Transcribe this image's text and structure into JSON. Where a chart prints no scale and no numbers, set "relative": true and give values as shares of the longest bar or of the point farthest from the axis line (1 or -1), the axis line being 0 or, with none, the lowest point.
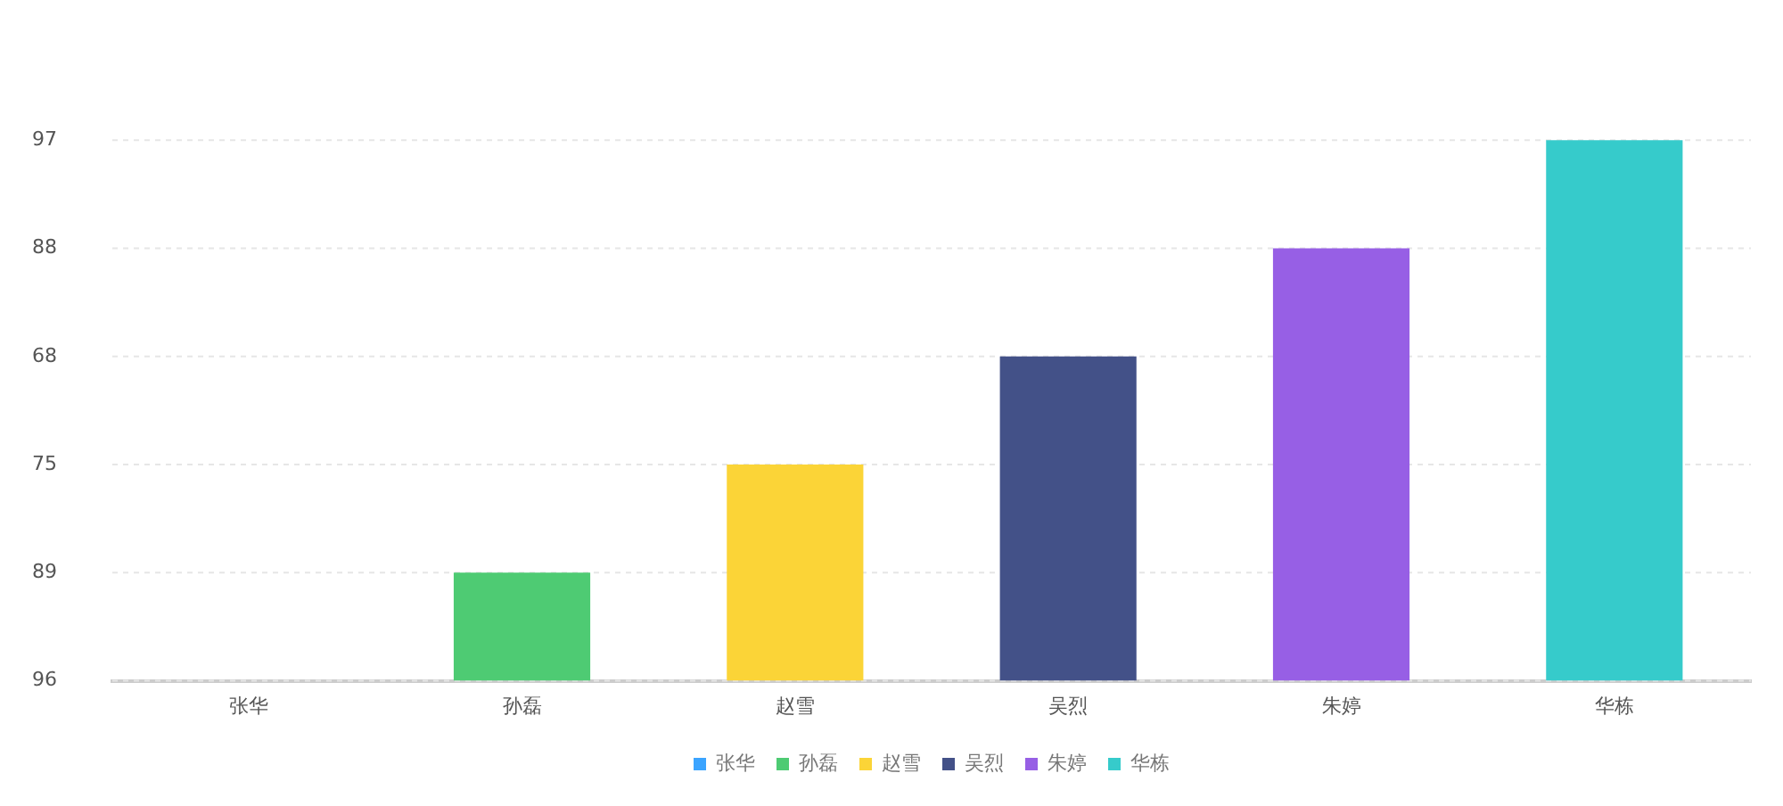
{
  "chart_data": {
    "type": "bar",
    "relative": true,
    "categories": [
      "张华",
      "孙磊",
      "赵雪",
      "吴烈",
      "朱婷",
      "华栋"
    ],
    "series": [
      {
        "name": "张华",
        "color": "#3ba4ff",
        "values": [
          0,
          null,
          null,
          null,
          null,
          null
        ]
      },
      {
        "name": "孙磊",
        "color": "#4ecb73",
        "values": [
          null,
          0.2,
          null,
          null,
          null,
          null
        ]
      },
      {
        "name": "赵雪",
        "color": "#fbd437",
        "values": [
          null,
          null,
          0.4,
          null,
          null,
          null
        ]
      },
      {
        "name": "吴烈",
        "color": "#435188",
        "values": [
          null,
          null,
          null,
          0.6,
          null,
          null
        ]
      },
      {
        "name": "朱婷",
        "color": "#975fe5",
        "values": [
          null,
          null,
          null,
          null,
          0.8,
          null
        ]
      },
      {
        "name": "华栋",
        "color": "#36cbcb",
        "values": [
          null,
          null,
          null,
          null,
          null,
          1
        ]
      }
    ],
    "annotations": [
      "96",
      "89",
      "75",
      "68",
      "88",
      "97"
    ],
    "grid": "y",
    "legend": "bottom"
  }
}
